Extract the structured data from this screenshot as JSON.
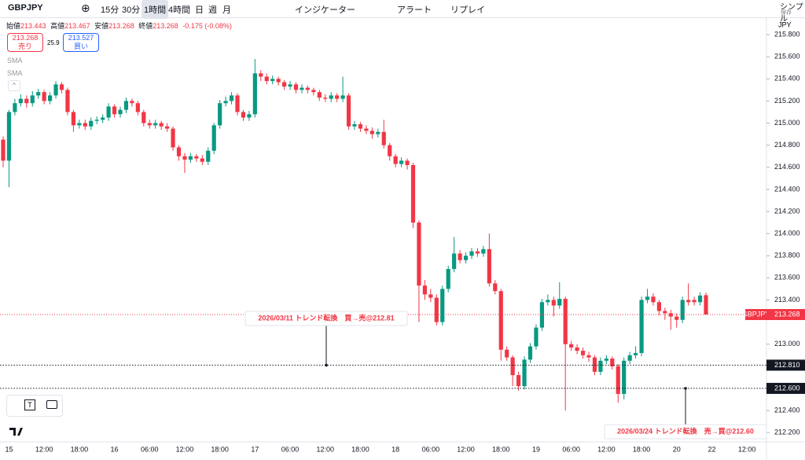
{
  "toolbar": {
    "symbol": "GBPJPY",
    "intervals": [
      "15分",
      "30分",
      "1時間",
      "4時間",
      "日",
      "週",
      "月"
    ],
    "indicators": "インジケーター",
    "alert": "アラート",
    "replay": "リプレイ",
    "layout_name": "シンプル",
    "save": "保存"
  },
  "legend": {
    "open_label": "始値",
    "open": 213.443,
    "high_label": "高値",
    "high": 213.467,
    "low_label": "安値",
    "low": 213.268,
    "close_label": "終値",
    "close": 213.268,
    "change": "-0.175 (-0.08%)",
    "sell_price": 213.268,
    "sell_label": "売り",
    "spread": 25.9,
    "buy_price": 213.527,
    "buy_label": "買い",
    "indicators": [
      "SMA",
      "SMA"
    ]
  },
  "chart_data": {
    "type": "candlestick",
    "currency": "JPY",
    "up_color": "#089981",
    "down_color": "#f23645",
    "categories": [
      null,
      "15",
      null,
      null,
      null,
      null,
      null,
      "12:00",
      null,
      null,
      null,
      null,
      null,
      "18:00",
      null,
      null,
      null,
      null,
      null,
      "16",
      null,
      null,
      null,
      null,
      null,
      "06:00",
      null,
      null,
      null,
      null,
      null,
      "12:00",
      null,
      null,
      null,
      null,
      null,
      "18:00",
      null,
      null,
      null,
      null,
      null,
      "17",
      null,
      null,
      null,
      null,
      null,
      "06:00",
      null,
      null,
      null,
      null,
      null,
      "12:00",
      null,
      null,
      null,
      null,
      null,
      "18:00",
      null,
      null,
      null,
      null,
      null,
      "18",
      null,
      null,
      null,
      null,
      null,
      "06:00",
      null,
      null,
      null,
      null,
      null,
      "12:00",
      null,
      null,
      null,
      null,
      null,
      "18:00",
      null,
      null,
      null,
      null,
      null,
      "19",
      null,
      null,
      null,
      null,
      null,
      "06:00",
      null,
      null,
      null,
      null,
      null,
      "12:00",
      null,
      null,
      null,
      null,
      null,
      "18:00",
      null,
      null,
      null,
      null,
      null,
      "20",
      null,
      null,
      null,
      null,
      null,
      "22",
      null,
      null,
      null,
      null,
      null,
      "12:00"
    ],
    "open": [
      214.85,
      214.66,
      215.1,
      215.18,
      215.22,
      215.18,
      215.25,
      215.28,
      215.2,
      215.25,
      215.35,
      215.3,
      215.1,
      214.98,
      215.0,
      214.97,
      215.02,
      215.03,
      215.05,
      215.15,
      215.08,
      215.12,
      215.2,
      215.18,
      215.1,
      215.0,
      214.98,
      215.0,
      214.97,
      214.95,
      214.78,
      214.7,
      214.67,
      214.7,
      214.68,
      214.65,
      214.75,
      214.98,
      215.18,
      215.2,
      215.25,
      215.1,
      215.05,
      215.08,
      215.45,
      215.42,
      215.38,
      215.4,
      215.37,
      215.33,
      215.35,
      215.3,
      215.32,
      215.3,
      215.28,
      215.23,
      215.22,
      215.25,
      215.22,
      215.25,
      214.97,
      214.99,
      214.95,
      214.93,
      214.9,
      214.92,
      214.8,
      214.7,
      214.63,
      214.66,
      214.62,
      214.1,
      213.53,
      213.45,
      213.42,
      213.2,
      213.5,
      213.68,
      213.82,
      213.76,
      213.8,
      213.84,
      213.82,
      213.86,
      213.55,
      213.48,
      212.95,
      212.88,
      212.72,
      212.62,
      212.86,
      212.98,
      213.15,
      213.38,
      213.4,
      213.35,
      213.41,
      213.0,
      212.97,
      212.94,
      212.9,
      212.88,
      212.75,
      212.85,
      212.87,
      212.8,
      212.55,
      212.85,
      212.9,
      212.92,
      213.4,
      213.43,
      213.38,
      213.3,
      213.28,
      213.25,
      213.22,
      213.4,
      213.4,
      213.38,
      213.443,
      null,
      null,
      null,
      null,
      null,
      null,
      null
    ],
    "high": [
      214.88,
      215.12,
      215.22,
      215.26,
      215.25,
      215.29,
      215.31,
      215.3,
      215.28,
      215.38,
      215.37,
      215.32,
      215.12,
      215.03,
      215.03,
      215.05,
      215.06,
      215.08,
      215.18,
      215.17,
      215.15,
      215.23,
      215.22,
      215.2,
      215.12,
      215.03,
      215.03,
      215.02,
      215.0,
      214.97,
      214.8,
      214.73,
      214.73,
      214.72,
      214.71,
      214.78,
      215.0,
      215.21,
      215.24,
      215.28,
      215.27,
      215.12,
      215.11,
      215.58,
      215.48,
      215.45,
      215.43,
      215.42,
      215.39,
      215.38,
      215.37,
      215.35,
      215.34,
      215.32,
      215.3,
      215.26,
      215.28,
      215.27,
      215.42,
      215.27,
      215.02,
      215.01,
      214.98,
      214.96,
      214.95,
      215.03,
      214.82,
      214.72,
      214.69,
      214.68,
      214.64,
      214.12,
      213.58,
      213.5,
      213.45,
      213.53,
      213.71,
      213.97,
      213.85,
      213.83,
      213.87,
      213.87,
      213.89,
      214.0,
      213.58,
      213.5,
      212.98,
      212.9,
      212.75,
      212.89,
      213.01,
      213.18,
      213.41,
      213.45,
      213.43,
      213.56,
      213.43,
      213.03,
      213.0,
      212.97,
      212.93,
      212.9,
      212.88,
      212.9,
      212.89,
      212.82,
      212.88,
      212.93,
      212.98,
      213.43,
      213.5,
      213.46,
      213.4,
      213.33,
      213.31,
      213.28,
      213.43,
      213.55,
      213.43,
      213.47,
      213.467,
      null,
      null,
      null,
      null,
      null,
      null,
      null
    ],
    "low": [
      214.6,
      214.42,
      215.07,
      215.15,
      215.14,
      215.15,
      215.22,
      215.17,
      215.17,
      215.22,
      215.27,
      215.07,
      214.92,
      214.95,
      214.94,
      214.94,
      214.99,
      215.0,
      215.02,
      215.05,
      215.05,
      215.09,
      215.15,
      215.07,
      214.97,
      214.95,
      214.95,
      214.94,
      214.92,
      214.75,
      214.66,
      214.55,
      214.64,
      214.65,
      214.62,
      214.62,
      214.72,
      214.95,
      215.15,
      215.17,
      215.07,
      215.02,
      215.02,
      215.05,
      215.38,
      215.35,
      215.35,
      215.34,
      215.3,
      215.3,
      215.27,
      215.27,
      215.27,
      215.25,
      215.2,
      215.19,
      215.19,
      215.19,
      215.19,
      214.94,
      214.94,
      214.92,
      214.9,
      214.86,
      214.87,
      214.77,
      214.66,
      214.6,
      214.6,
      214.58,
      214.05,
      213.2,
      213.4,
      213.38,
      213.17,
      213.17,
      213.47,
      213.65,
      213.73,
      213.73,
      213.77,
      213.79,
      213.79,
      213.52,
      213.45,
      212.85,
      212.85,
      212.62,
      212.58,
      212.59,
      212.83,
      212.95,
      213.12,
      213.35,
      213.25,
      213.32,
      212.4,
      212.94,
      212.91,
      212.87,
      212.84,
      212.72,
      212.72,
      212.82,
      212.77,
      212.47,
      212.5,
      212.82,
      212.87,
      212.89,
      213.37,
      213.35,
      213.26,
      213.22,
      213.13,
      213.15,
      213.19,
      213.35,
      213.35,
      213.35,
      213.268,
      null,
      null,
      null,
      null,
      null,
      null,
      null
    ],
    "close": [
      214.66,
      215.1,
      215.18,
      215.22,
      215.18,
      215.25,
      215.28,
      215.2,
      215.25,
      215.35,
      215.3,
      215.1,
      214.98,
      215.0,
      214.97,
      215.02,
      215.03,
      215.05,
      215.15,
      215.08,
      215.12,
      215.2,
      215.18,
      215.1,
      215.0,
      214.98,
      215.0,
      214.97,
      214.95,
      214.78,
      214.7,
      214.67,
      214.7,
      214.68,
      214.65,
      214.75,
      214.98,
      215.18,
      215.2,
      215.25,
      215.1,
      215.05,
      215.08,
      215.45,
      215.42,
      215.38,
      215.4,
      215.37,
      215.33,
      215.35,
      215.3,
      215.32,
      215.3,
      215.28,
      215.23,
      215.22,
      215.25,
      215.22,
      215.25,
      214.97,
      214.99,
      214.95,
      214.93,
      214.9,
      214.92,
      214.8,
      214.7,
      214.63,
      214.66,
      214.62,
      214.1,
      213.53,
      213.45,
      213.42,
      213.2,
      213.5,
      213.68,
      213.82,
      213.76,
      213.8,
      213.84,
      213.82,
      213.86,
      213.55,
      213.48,
      212.95,
      212.88,
      212.72,
      212.62,
      212.86,
      212.98,
      213.15,
      213.38,
      213.4,
      213.35,
      213.41,
      213.0,
      212.97,
      212.94,
      212.9,
      212.88,
      212.75,
      212.85,
      212.87,
      212.8,
      212.55,
      212.85,
      212.9,
      212.92,
      213.4,
      213.43,
      213.38,
      213.3,
      213.28,
      213.25,
      213.22,
      213.4,
      213.38,
      213.38,
      213.44,
      213.268,
      null,
      null,
      null,
      null,
      null,
      null,
      null
    ],
    "ylim": [
      212.13,
      215.9
    ],
    "yticks": [
      {
        "value": 215.8,
        "label": "215.800"
      },
      {
        "value": 215.6,
        "label": "215.600"
      },
      {
        "value": 215.4,
        "label": "215.400"
      },
      {
        "value": 215.2,
        "label": "215.200"
      },
      {
        "value": 215.0,
        "label": "215.000"
      },
      {
        "value": 214.8,
        "label": "214.800"
      },
      {
        "value": 214.6,
        "label": "214.600"
      },
      {
        "value": 214.4,
        "label": "214.400"
      },
      {
        "value": 214.2,
        "label": "214.200"
      },
      {
        "value": 214.0,
        "label": "214.000"
      },
      {
        "value": 213.8,
        "label": "213.800"
      },
      {
        "value": 213.6,
        "label": "213.600"
      },
      {
        "value": 213.4,
        "label": "213.400"
      },
      {
        "value": 213.0,
        "label": "213.000"
      },
      {
        "value": 212.4,
        "label": "212.400"
      },
      {
        "value": 212.2,
        "label": "212.200"
      }
    ],
    "price_line": {
      "label": "GBPJPY",
      "value": 213.268
    },
    "levels": [
      {
        "price": 212.81,
        "price_label": "212.810",
        "note": "2026/03/11 トレンド転換　買→売@212.81"
      },
      {
        "price": 212.6,
        "price_label": "212.600",
        "note": "2026/03/24 トレンド転換　売→買@212.60"
      }
    ]
  }
}
